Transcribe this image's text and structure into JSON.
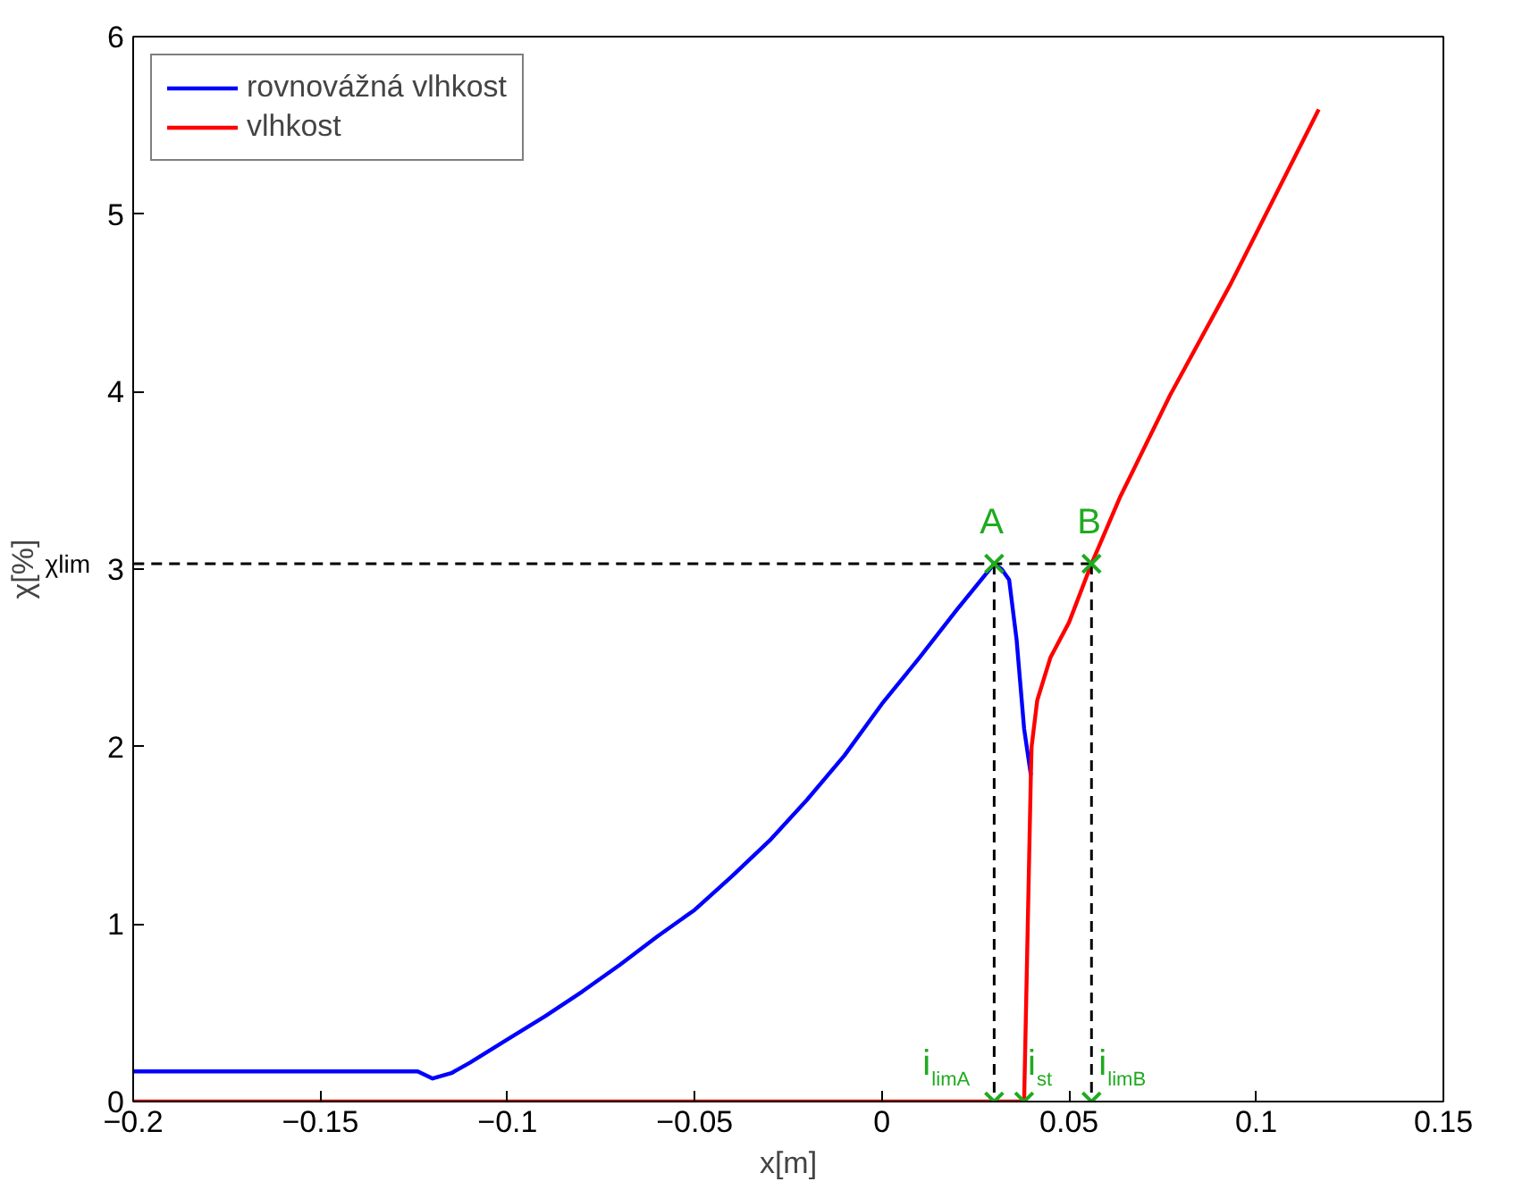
{
  "chart_data": {
    "type": "line",
    "xlabel": "x[m]",
    "ylabel": "χ[%]",
    "xlim": [
      -0.2,
      0.15
    ],
    "ylim": [
      0,
      6
    ],
    "xticks": [
      {
        "value": -0.2,
        "label": "−0.2"
      },
      {
        "value": -0.15,
        "label": "−0.15"
      },
      {
        "value": -0.1,
        "label": "−0.1"
      },
      {
        "value": -0.05,
        "label": "−0.05"
      },
      0,
      0.05,
      0.1,
      0.15
    ],
    "yticks": [
      0,
      1,
      2,
      3,
      4,
      5,
      6
    ],
    "grid": false,
    "legend": "top left",
    "line_style": "solid",
    "series": [
      {
        "name": "rovnovážná vlhkost",
        "color": "#0000ff",
        "x": [
          -0.2,
          -0.15,
          -0.124,
          -0.12,
          -0.115,
          -0.11,
          -0.1,
          -0.09,
          -0.08,
          -0.07,
          -0.06,
          -0.05,
          -0.04,
          -0.03,
          -0.02,
          -0.01,
          0,
          0.01,
          0.02,
          0.03,
          0.032,
          0.034,
          0.036,
          0.038,
          0.0398
        ],
        "values": [
          0.17,
          0.17,
          0.17,
          0.13,
          0.16,
          0.22,
          0.35,
          0.48,
          0.62,
          0.77,
          0.93,
          1.08,
          1.27,
          1.47,
          1.7,
          1.95,
          2.24,
          2.5,
          2.77,
          3.03,
          3.0,
          2.94,
          2.6,
          2.1,
          1.84
        ]
      },
      {
        "name": "vlhkost",
        "color": "#ff0000",
        "x": [
          -0.2,
          0.038,
          0.0398,
          0.04,
          0.0415,
          0.045,
          0.05,
          0.056,
          0.0635,
          0.077,
          0.093,
          0.105,
          0.1167
        ],
        "values": [
          0,
          0,
          1.84,
          2.0,
          2.26,
          2.5,
          2.7,
          3.03,
          3.4,
          3.98,
          4.6,
          5.1,
          5.59
        ]
      },
      {
        "color": "#000000",
        "line_style": "dashed",
        "x": [
          0.056,
          -0.2
        ],
        "values": [
          3.03,
          3.03
        ]
      },
      {
        "color": "#000000",
        "line_style": "dashed",
        "x": [
          0.03,
          0.03
        ],
        "values": [
          3.03,
          0
        ]
      },
      {
        "color": "#000000",
        "line_style": "dashed",
        "x": [
          0.056,
          0.056
        ],
        "values": [
          3.03,
          0
        ]
      },
      {
        "type": "scatter",
        "marker": "cross",
        "color": "#1faa1f",
        "x": [
          0.03,
          0.056,
          0.03,
          0.038,
          0.056
        ],
        "values": [
          3.03,
          3.03,
          0,
          0,
          0
        ]
      }
    ],
    "annotations": [
      {
        "text": "A",
        "x": 0.03,
        "y": 3.03
      },
      {
        "text": "B",
        "x": 0.056,
        "y": 3.03
      },
      {
        "text": "i$_{limA}$",
        "x": 0.03,
        "y": 0
      },
      {
        "text": "i$_{st}$",
        "x": 0.038,
        "y": 0
      },
      {
        "text": "i$_{limB}$",
        "x": 0.056,
        "y": 0
      },
      {
        "text": "χlim",
        "x": -0.2,
        "y": 3.03
      }
    ]
  }
}
